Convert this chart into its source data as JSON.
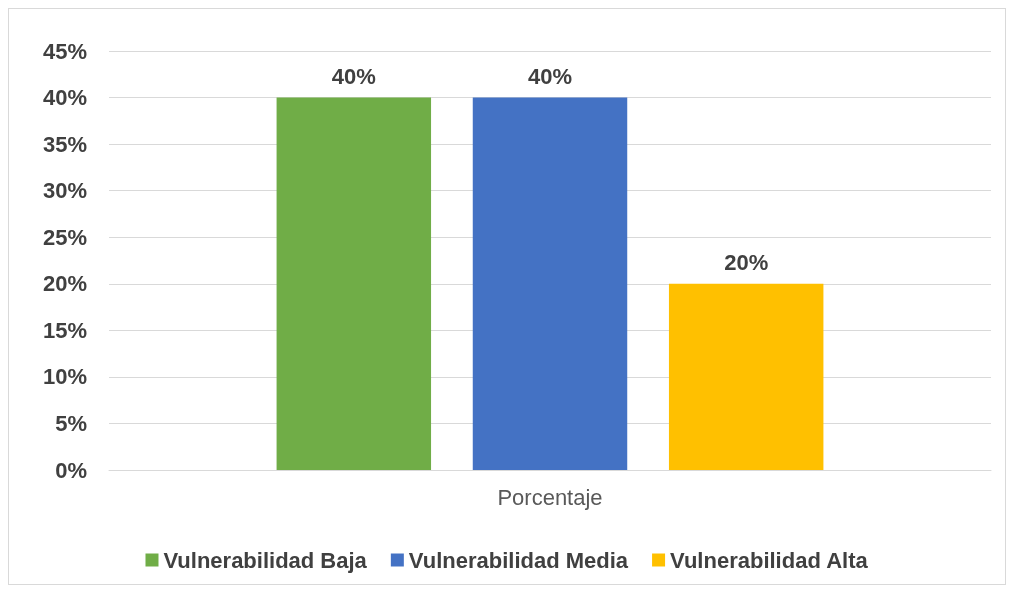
{
  "chart_data": {
    "type": "bar",
    "categories": [
      "Porcentaje"
    ],
    "series": [
      {
        "name": "Vulnerabilidad Baja",
        "color": "#70ad47",
        "values": [
          40
        ],
        "value_labels": [
          "40%"
        ]
      },
      {
        "name": "Vulnerabilidad Media",
        "color": "#4472c4",
        "values": [
          40
        ],
        "value_labels": [
          "40%"
        ]
      },
      {
        "name": "Vulnerabilidad Alta",
        "color": "#ffc000",
        "values": [
          20
        ],
        "value_labels": [
          "20%"
        ]
      }
    ],
    "ylim": [
      0,
      45
    ],
    "yticks": [
      {
        "value": 0,
        "label": "0%"
      },
      {
        "value": 5,
        "label": "5%"
      },
      {
        "value": 10,
        "label": "10%"
      },
      {
        "value": 15,
        "label": "15%"
      },
      {
        "value": 20,
        "label": "20%"
      },
      {
        "value": 25,
        "label": "25%"
      },
      {
        "value": 30,
        "label": "30%"
      },
      {
        "value": 35,
        "label": "35%"
      },
      {
        "value": 40,
        "label": "40%"
      },
      {
        "value": 45,
        "label": "45%"
      }
    ],
    "grid": "y",
    "legend": "bottom"
  }
}
